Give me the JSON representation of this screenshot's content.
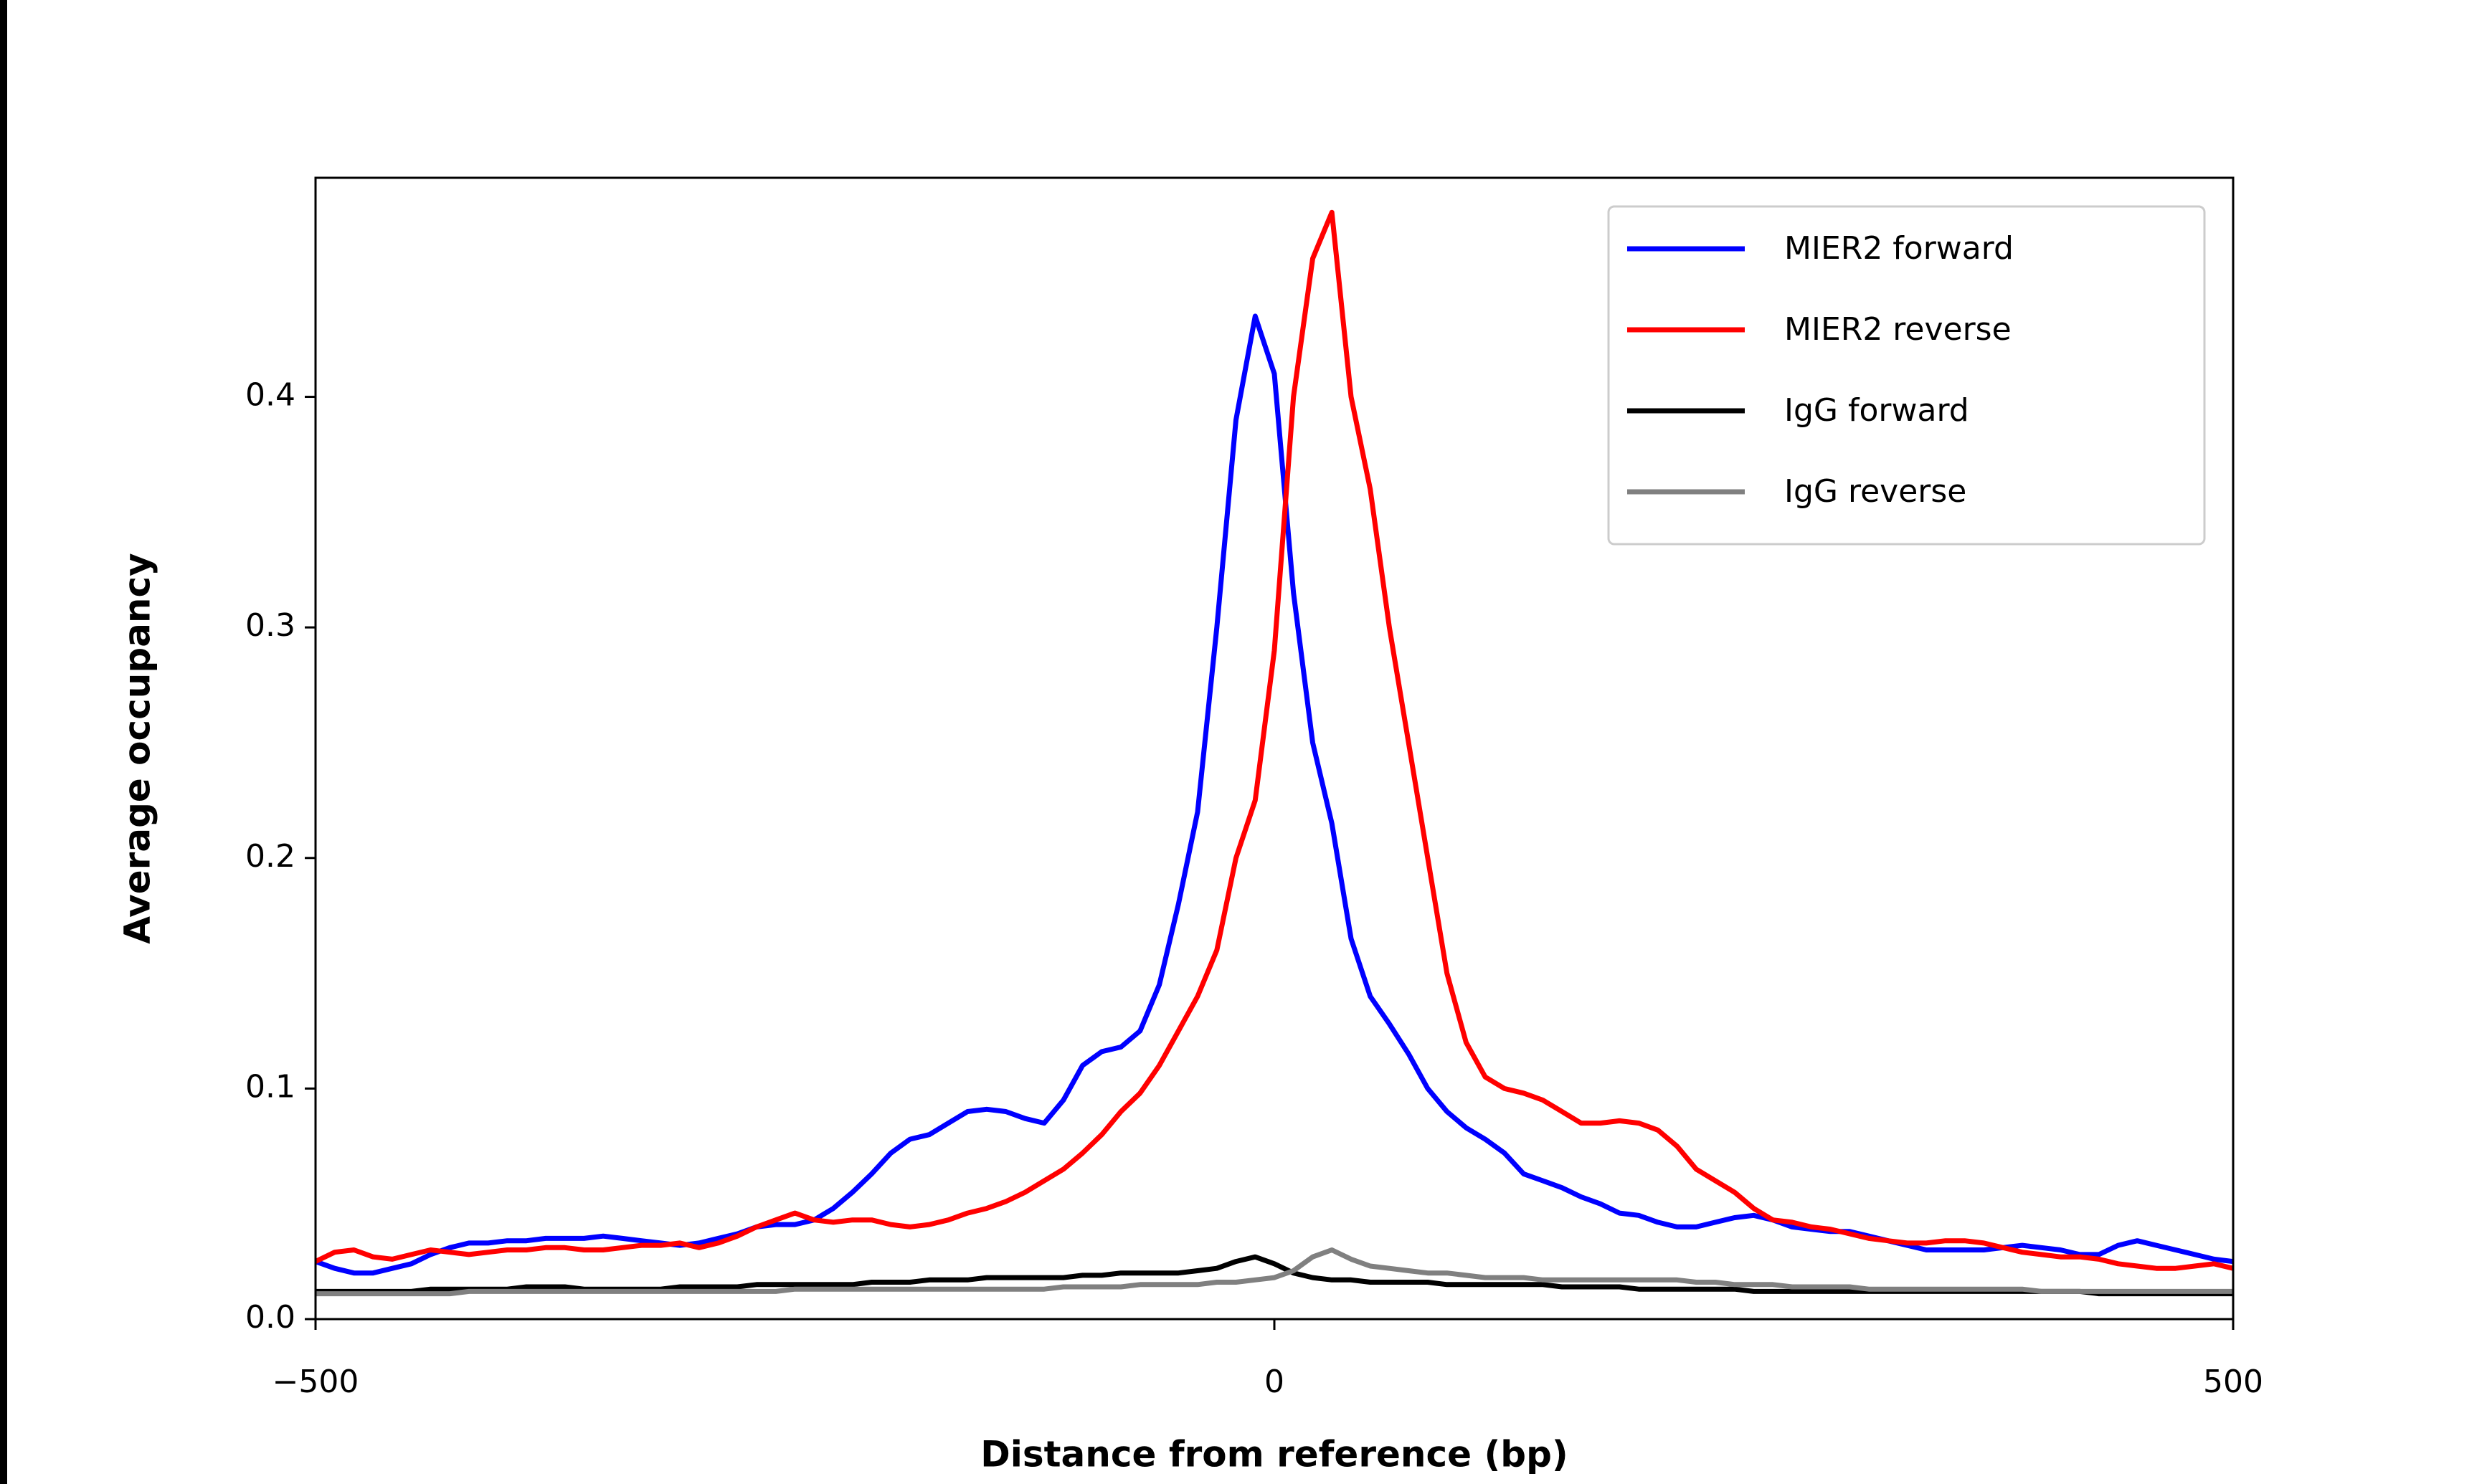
{
  "chart_data": {
    "type": "line",
    "xlabel": "Distance from reference (bp)",
    "ylabel": "Average occupancy",
    "x": [
      -500,
      -490,
      -480,
      -470,
      -460,
      -450,
      -440,
      -430,
      -420,
      -410,
      -400,
      -390,
      -380,
      -370,
      -360,
      -350,
      -340,
      -330,
      -320,
      -310,
      -300,
      -290,
      -280,
      -270,
      -260,
      -250,
      -240,
      -230,
      -220,
      -210,
      -200,
      -190,
      -180,
      -170,
      -160,
      -150,
      -140,
      -130,
      -120,
      -110,
      -100,
      -90,
      -80,
      -70,
      -60,
      -50,
      -40,
      -30,
      -20,
      -10,
      0,
      10,
      20,
      30,
      40,
      50,
      60,
      70,
      80,
      90,
      100,
      110,
      120,
      130,
      140,
      150,
      160,
      170,
      180,
      190,
      200,
      210,
      220,
      230,
      240,
      250,
      260,
      270,
      280,
      290,
      300,
      310,
      320,
      330,
      340,
      350,
      360,
      370,
      380,
      390,
      400,
      410,
      420,
      430,
      440,
      450,
      460,
      470,
      480,
      490,
      500
    ],
    "series": [
      {
        "name": "MIER2 forward",
        "color": "#0000ff",
        "values": [
          0.025,
          0.022,
          0.02,
          0.02,
          0.022,
          0.024,
          0.028,
          0.031,
          0.033,
          0.033,
          0.034,
          0.034,
          0.035,
          0.035,
          0.035,
          0.036,
          0.035,
          0.034,
          0.033,
          0.032,
          0.033,
          0.035,
          0.037,
          0.04,
          0.041,
          0.041,
          0.043,
          0.048,
          0.055,
          0.063,
          0.072,
          0.078,
          0.08,
          0.085,
          0.09,
          0.091,
          0.09,
          0.087,
          0.085,
          0.095,
          0.11,
          0.116,
          0.118,
          0.125,
          0.145,
          0.18,
          0.22,
          0.3,
          0.39,
          0.435,
          0.41,
          0.315,
          0.25,
          0.215,
          0.165,
          0.14,
          0.128,
          0.115,
          0.1,
          0.09,
          0.083,
          0.078,
          0.072,
          0.063,
          0.06,
          0.057,
          0.053,
          0.05,
          0.046,
          0.045,
          0.042,
          0.04,
          0.04,
          0.042,
          0.044,
          0.045,
          0.043,
          0.04,
          0.039,
          0.038,
          0.038,
          0.036,
          0.034,
          0.032,
          0.03,
          0.03,
          0.03,
          0.03,
          0.031,
          0.032,
          0.031,
          0.03,
          0.028,
          0.028,
          0.032,
          0.034,
          0.032,
          0.03,
          0.028,
          0.026,
          0.025
        ]
      },
      {
        "name": "MIER2 reverse",
        "color": "#ff0000",
        "values": [
          0.025,
          0.029,
          0.03,
          0.027,
          0.026,
          0.028,
          0.03,
          0.029,
          0.028,
          0.029,
          0.03,
          0.03,
          0.031,
          0.031,
          0.03,
          0.03,
          0.031,
          0.032,
          0.032,
          0.033,
          0.031,
          0.033,
          0.036,
          0.04,
          0.043,
          0.046,
          0.043,
          0.042,
          0.043,
          0.043,
          0.041,
          0.04,
          0.041,
          0.043,
          0.046,
          0.048,
          0.051,
          0.055,
          0.06,
          0.065,
          0.072,
          0.08,
          0.09,
          0.098,
          0.11,
          0.125,
          0.14,
          0.16,
          0.2,
          0.225,
          0.29,
          0.4,
          0.46,
          0.48,
          0.4,
          0.36,
          0.3,
          0.25,
          0.2,
          0.15,
          0.12,
          0.105,
          0.1,
          0.098,
          0.095,
          0.09,
          0.085,
          0.085,
          0.086,
          0.085,
          0.082,
          0.075,
          0.065,
          0.06,
          0.055,
          0.048,
          0.043,
          0.042,
          0.04,
          0.039,
          0.037,
          0.035,
          0.034,
          0.033,
          0.033,
          0.034,
          0.034,
          0.033,
          0.031,
          0.029,
          0.028,
          0.027,
          0.027,
          0.026,
          0.024,
          0.023,
          0.022,
          0.022,
          0.023,
          0.024,
          0.022
        ]
      },
      {
        "name": "IgG forward",
        "color": "#000000",
        "values": [
          0.012,
          0.012,
          0.012,
          0.012,
          0.012,
          0.012,
          0.013,
          0.013,
          0.013,
          0.013,
          0.013,
          0.014,
          0.014,
          0.014,
          0.013,
          0.013,
          0.013,
          0.013,
          0.013,
          0.014,
          0.014,
          0.014,
          0.014,
          0.015,
          0.015,
          0.015,
          0.015,
          0.015,
          0.015,
          0.016,
          0.016,
          0.016,
          0.017,
          0.017,
          0.017,
          0.018,
          0.018,
          0.018,
          0.018,
          0.018,
          0.019,
          0.019,
          0.02,
          0.02,
          0.02,
          0.02,
          0.021,
          0.022,
          0.025,
          0.027,
          0.024,
          0.02,
          0.018,
          0.017,
          0.017,
          0.016,
          0.016,
          0.016,
          0.016,
          0.015,
          0.015,
          0.015,
          0.015,
          0.015,
          0.015,
          0.014,
          0.014,
          0.014,
          0.014,
          0.013,
          0.013,
          0.013,
          0.013,
          0.013,
          0.013,
          0.012,
          0.012,
          0.012,
          0.012,
          0.012,
          0.012,
          0.012,
          0.012,
          0.012,
          0.012,
          0.012,
          0.012,
          0.012,
          0.012,
          0.012,
          0.012,
          0.012,
          0.012,
          0.011,
          0.011,
          0.011,
          0.011,
          0.011,
          0.011,
          0.011,
          0.011
        ]
      },
      {
        "name": "IgG reverse",
        "color": "#808080",
        "values": [
          0.011,
          0.011,
          0.011,
          0.011,
          0.011,
          0.011,
          0.011,
          0.011,
          0.012,
          0.012,
          0.012,
          0.012,
          0.012,
          0.012,
          0.012,
          0.012,
          0.012,
          0.012,
          0.012,
          0.012,
          0.012,
          0.012,
          0.012,
          0.012,
          0.012,
          0.013,
          0.013,
          0.013,
          0.013,
          0.013,
          0.013,
          0.013,
          0.013,
          0.013,
          0.013,
          0.013,
          0.013,
          0.013,
          0.013,
          0.014,
          0.014,
          0.014,
          0.014,
          0.015,
          0.015,
          0.015,
          0.015,
          0.016,
          0.016,
          0.017,
          0.018,
          0.021,
          0.027,
          0.03,
          0.026,
          0.023,
          0.022,
          0.021,
          0.02,
          0.02,
          0.019,
          0.018,
          0.018,
          0.018,
          0.017,
          0.017,
          0.017,
          0.017,
          0.017,
          0.017,
          0.017,
          0.017,
          0.016,
          0.016,
          0.015,
          0.015,
          0.015,
          0.014,
          0.014,
          0.014,
          0.014,
          0.013,
          0.013,
          0.013,
          0.013,
          0.013,
          0.013,
          0.013,
          0.013,
          0.013,
          0.012,
          0.012,
          0.012,
          0.012,
          0.012,
          0.012,
          0.012,
          0.012,
          0.012,
          0.012,
          0.012
        ]
      }
    ],
    "xlim": [
      -500,
      500
    ],
    "ylim": [
      0,
      0.495
    ],
    "xticks": [
      {
        "value": -500,
        "label": "−500"
      },
      0,
      500
    ],
    "yticks": [
      {
        "value": 0,
        "label": "0.0"
      },
      0.1,
      0.2,
      0.3,
      0.4
    ],
    "legend": "upper right"
  }
}
